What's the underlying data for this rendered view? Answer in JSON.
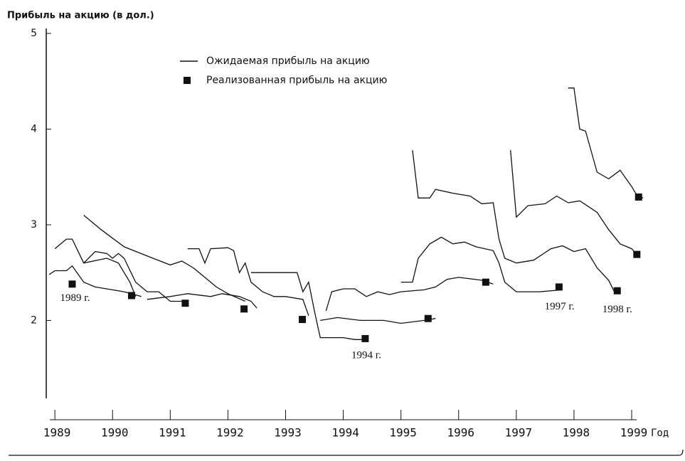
{
  "chart_data": {
    "type": "line",
    "title": "Прибыль на акцию (в дол.)",
    "x_label": "Год",
    "xlim": [
      1988.85,
      1999.9
    ],
    "xticks": [
      1989,
      1990,
      1991,
      1992,
      1993,
      1994,
      1995,
      1996,
      1997,
      1998,
      1999
    ],
    "ylim": [
      1.2,
      5
    ],
    "yticks": [
      2,
      3,
      4,
      5
    ],
    "grid": false,
    "legend": "top",
    "series": [
      {
        "name": "Ожидаемая прибыль на акцию",
        "color": "#111111",
        "style": "line",
        "x": [
          1989.0,
          1989.2,
          1989.3,
          1989.5,
          1989.9,
          1990.1,
          1990.3,
          1990.4,
          null,
          1988.9,
          1989.0,
          1989.2,
          1989.3,
          1989.5,
          1989.7,
          1990.0,
          1990.2,
          1990.5,
          null,
          1989.5,
          1989.8,
          1990.2,
          1990.7,
          1991.0,
          1991.2,
          1991.4,
          1991.6,
          1991.8,
          1992.0,
          1992.3,
          null,
          1989.5,
          1989.7,
          1989.9,
          1990.0,
          1990.1,
          1990.2,
          1990.4,
          1990.6,
          1990.8,
          1991.0,
          1991.2,
          1991.3,
          null,
          1991.3,
          1991.5,
          1991.6,
          1991.7,
          1992.0,
          1992.1,
          1992.2,
          1992.3,
          1992.4,
          1992.6,
          1992.8,
          1993.0,
          1993.3,
          1993.4,
          null,
          1990.6,
          1991.0,
          1991.3,
          1991.7,
          1991.9,
          1992.2,
          1992.4,
          1992.5,
          null,
          1992.4,
          1993.2,
          1993.3,
          1993.4,
          1993.5,
          1993.6,
          1994.0,
          1994.2,
          1994.4,
          null,
          1993.7,
          1993.8,
          1994.0,
          1994.2,
          1994.4,
          1994.6,
          1994.8,
          1995.0,
          1995.4,
          1995.6,
          1995.8,
          1996.0,
          1996.4,
          1996.6,
          null,
          1993.6,
          1993.9,
          1994.3,
          1994.7,
          1995.0,
          1995.4,
          1995.6,
          null,
          1995.0,
          1995.2,
          1995.3,
          1995.5,
          1995.7,
          1995.9,
          1996.1,
          1996.3,
          1996.6,
          1996.7,
          1996.8,
          1997.0,
          1997.4,
          1997.8,
          null,
          1995.2,
          1995.3,
          1995.5,
          1995.6,
          1995.9,
          1996.2,
          1996.4,
          1996.6,
          1996.7,
          1996.8,
          1997.0,
          1997.3,
          1997.6,
          1997.8,
          1998.0,
          1998.2,
          1998.4,
          1998.6,
          1998.7,
          null,
          1996.9,
          1997.0,
          1997.2,
          1997.5,
          1997.7,
          1997.9,
          1998.1,
          1998.4,
          1998.6,
          1998.8,
          1999.0,
          1999.1,
          null,
          1997.9,
          1998.0,
          1998.1,
          1998.2,
          1998.4,
          1998.6,
          1998.8,
          1999.0,
          1999.1,
          1999.2
        ],
        "values": [
          2.75,
          2.85,
          2.85,
          2.6,
          2.65,
          2.6,
          2.4,
          2.25,
          null,
          2.48,
          2.52,
          2.52,
          2.57,
          2.4,
          2.35,
          2.32,
          2.3,
          2.25,
          null,
          3.1,
          2.95,
          2.77,
          2.65,
          2.58,
          2.62,
          2.55,
          2.45,
          2.35,
          2.28,
          2.2,
          null,
          2.6,
          2.72,
          2.7,
          2.65,
          2.7,
          2.65,
          2.4,
          2.3,
          2.3,
          2.2,
          2.2,
          2.18,
          null,
          2.75,
          2.75,
          2.6,
          2.75,
          2.76,
          2.73,
          2.5,
          2.6,
          2.4,
          2.3,
          2.25,
          2.25,
          2.22,
          2.05,
          null,
          2.22,
          2.25,
          2.28,
          2.25,
          2.28,
          2.25,
          2.2,
          2.13,
          null,
          2.5,
          2.5,
          2.3,
          2.4,
          2.1,
          1.82,
          1.82,
          1.8,
          1.8,
          null,
          2.1,
          2.3,
          2.33,
          2.33,
          2.25,
          2.3,
          2.27,
          2.3,
          2.32,
          2.35,
          2.43,
          2.45,
          2.42,
          2.38,
          null,
          2.0,
          2.03,
          2.0,
          2.0,
          1.97,
          2.0,
          2.02,
          null,
          2.4,
          2.4,
          2.65,
          2.8,
          2.87,
          2.8,
          2.82,
          2.77,
          2.73,
          2.6,
          2.4,
          2.3,
          2.3,
          2.32,
          null,
          3.78,
          3.28,
          3.28,
          3.37,
          3.33,
          3.3,
          3.22,
          3.23,
          2.85,
          2.65,
          2.6,
          2.63,
          2.75,
          2.78,
          2.72,
          2.75,
          2.55,
          2.42,
          2.3,
          null,
          3.78,
          3.08,
          3.2,
          3.22,
          3.3,
          3.23,
          3.25,
          3.13,
          2.95,
          2.8,
          2.75,
          2.68,
          null,
          4.43,
          4.43,
          4.0,
          3.98,
          3.55,
          3.48,
          3.57,
          3.4,
          3.3,
          3.28
        ]
      },
      {
        "name": "Реализованная прибыль на акцию",
        "color": "#111111",
        "style": "markers",
        "x": [
          1989.3,
          1990.33,
          1991.26,
          1992.28,
          1993.29,
          1994.38,
          1995.47,
          1996.47,
          1997.74,
          1998.75,
          1999.09,
          1999.12
        ],
        "values": [
          2.38,
          2.26,
          2.18,
          2.12,
          2.01,
          1.81,
          2.02,
          2.4,
          2.35,
          2.31,
          2.69,
          3.29
        ]
      }
    ],
    "annotations": [
      {
        "text": "1989 г.",
        "x": 1989.35,
        "y": 2.23
      },
      {
        "text": "1994 г.",
        "x": 1994.4,
        "y": 1.63
      },
      {
        "text": "1997 г.",
        "x": 1997.75,
        "y": 2.14
      },
      {
        "text": "1998 г.",
        "x": 1998.75,
        "y": 2.11
      }
    ]
  }
}
